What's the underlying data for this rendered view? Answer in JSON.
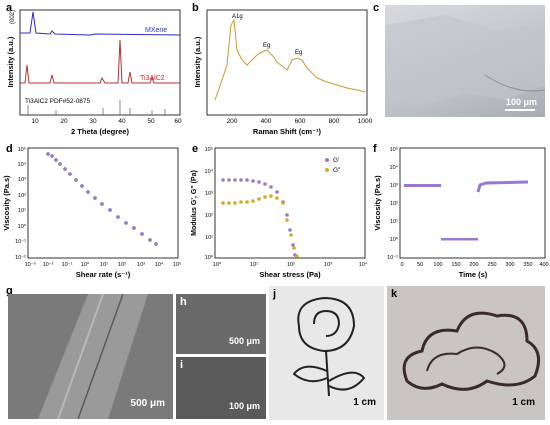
{
  "panels": {
    "a": {
      "letter": "a",
      "xlabel": "2 Theta (degree)",
      "ylabel": "Intensity (a.u.)",
      "xticks": [
        "10",
        "20",
        "30",
        "40",
        "50",
        "60"
      ],
      "mxene_label": "MXene",
      "mxene_color": "#2c2cc8",
      "tialc_label": "Ti3AlC2",
      "tialc_label_sub": "2",
      "tialc_color": "#b83030",
      "ref_label": "Ti3AlC2  PDF#52-0875",
      "peak_label": "(002)"
    },
    "b": {
      "letter": "b",
      "xlabel": "Raman Shift (cm⁻¹)",
      "ylabel": "Intensity (a.u.)",
      "xticks": [
        "200",
        "400",
        "600",
        "800",
        "1000"
      ],
      "peak_labels": [
        "A1g",
        "Eg",
        "Eg"
      ],
      "line_color": "#c89a30"
    },
    "c": {
      "letter": "c",
      "scale": "100 μm"
    },
    "d": {
      "letter": "d",
      "xlabel": "Shear rate (s⁻¹)",
      "ylabel": "Viscosity (Pa.s)",
      "xticks": [
        "10⁻³",
        "10⁻²",
        "10⁻¹",
        "10⁰",
        "10¹",
        "10²",
        "10³",
        "10⁴",
        "10⁵"
      ],
      "yticks": [
        "10⁵",
        "10⁴",
        "10³",
        "10²",
        "10¹",
        "10⁰",
        "10⁻¹",
        "10⁻²"
      ]
    },
    "e": {
      "letter": "e",
      "xlabel": "Shear stress (Pa)",
      "ylabel": "Modulus G', G\" (Pa)",
      "xticks": [
        "10⁰",
        "10¹",
        "10²",
        "10³",
        "10⁴"
      ],
      "yticks": [
        "10⁵",
        "10⁴",
        "10³",
        "10²",
        "10¹",
        "10⁰"
      ],
      "legend": [
        "G'",
        "G\""
      ]
    },
    "f": {
      "letter": "f",
      "xlabel": "Time (s)",
      "ylabel": "Viscosity (Pa.s)",
      "xticks": [
        "0",
        "50",
        "100",
        "150",
        "200",
        "250",
        "300",
        "350",
        "400"
      ],
      "yticks": [
        "10⁵",
        "10⁴",
        "10³",
        "10²",
        "10¹",
        "10⁰",
        "10⁻¹"
      ]
    },
    "g": {
      "letter": "g",
      "scale": "500 μm"
    },
    "h": {
      "letter": "h",
      "scale": "500 μm"
    },
    "i": {
      "letter": "i",
      "scale": "100 μm"
    },
    "j": {
      "letter": "j",
      "scale": "1 cm"
    },
    "k": {
      "letter": "k",
      "scale": "1 cm"
    }
  },
  "chart_data": [
    {
      "type": "line",
      "panel": "a",
      "x_range": [
        5,
        60
      ],
      "series": [
        {
          "name": "MXene",
          "peaks_x": [
            7,
            14,
            28,
            36,
            61
          ]
        },
        {
          "name": "Ti3AlC2",
          "peaks_x": [
            9.5,
            19,
            34,
            36,
            39,
            42,
            48,
            52,
            56
          ]
        }
      ]
    },
    {
      "type": "line",
      "panel": "b",
      "x_range": [
        100,
        1000
      ],
      "peaks": [
        {
          "label": "A1g",
          "x": 205
        },
        {
          "label": "Eg",
          "x": 380
        },
        {
          "label": "Eg",
          "x": 600
        }
      ]
    },
    {
      "type": "scatter",
      "panel": "d",
      "xscale": "log",
      "yscale": "log",
      "x": [
        0.01,
        0.1,
        1,
        10,
        100,
        1000,
        10000
      ],
      "y": [
        30000,
        5000,
        800,
        150,
        30,
        3,
        0.5
      ]
    },
    {
      "type": "scatter",
      "panel": "e",
      "xscale": "log",
      "yscale": "log",
      "series": [
        {
          "name": "G'",
          "plateau": 2000,
          "drop_stress": 70
        },
        {
          "name": "G\"",
          "plateau": 250,
          "drop_stress": 70
        }
      ]
    },
    {
      "type": "scatter",
      "panel": "f",
      "yscale": "log",
      "segments": [
        {
          "t": [
            0,
            100
          ],
          "viscosity": 500
        },
        {
          "t": [
            100,
            200
          ],
          "viscosity": 1
        },
        {
          "t": [
            200,
            350
          ],
          "viscosity": 600
        }
      ]
    }
  ]
}
